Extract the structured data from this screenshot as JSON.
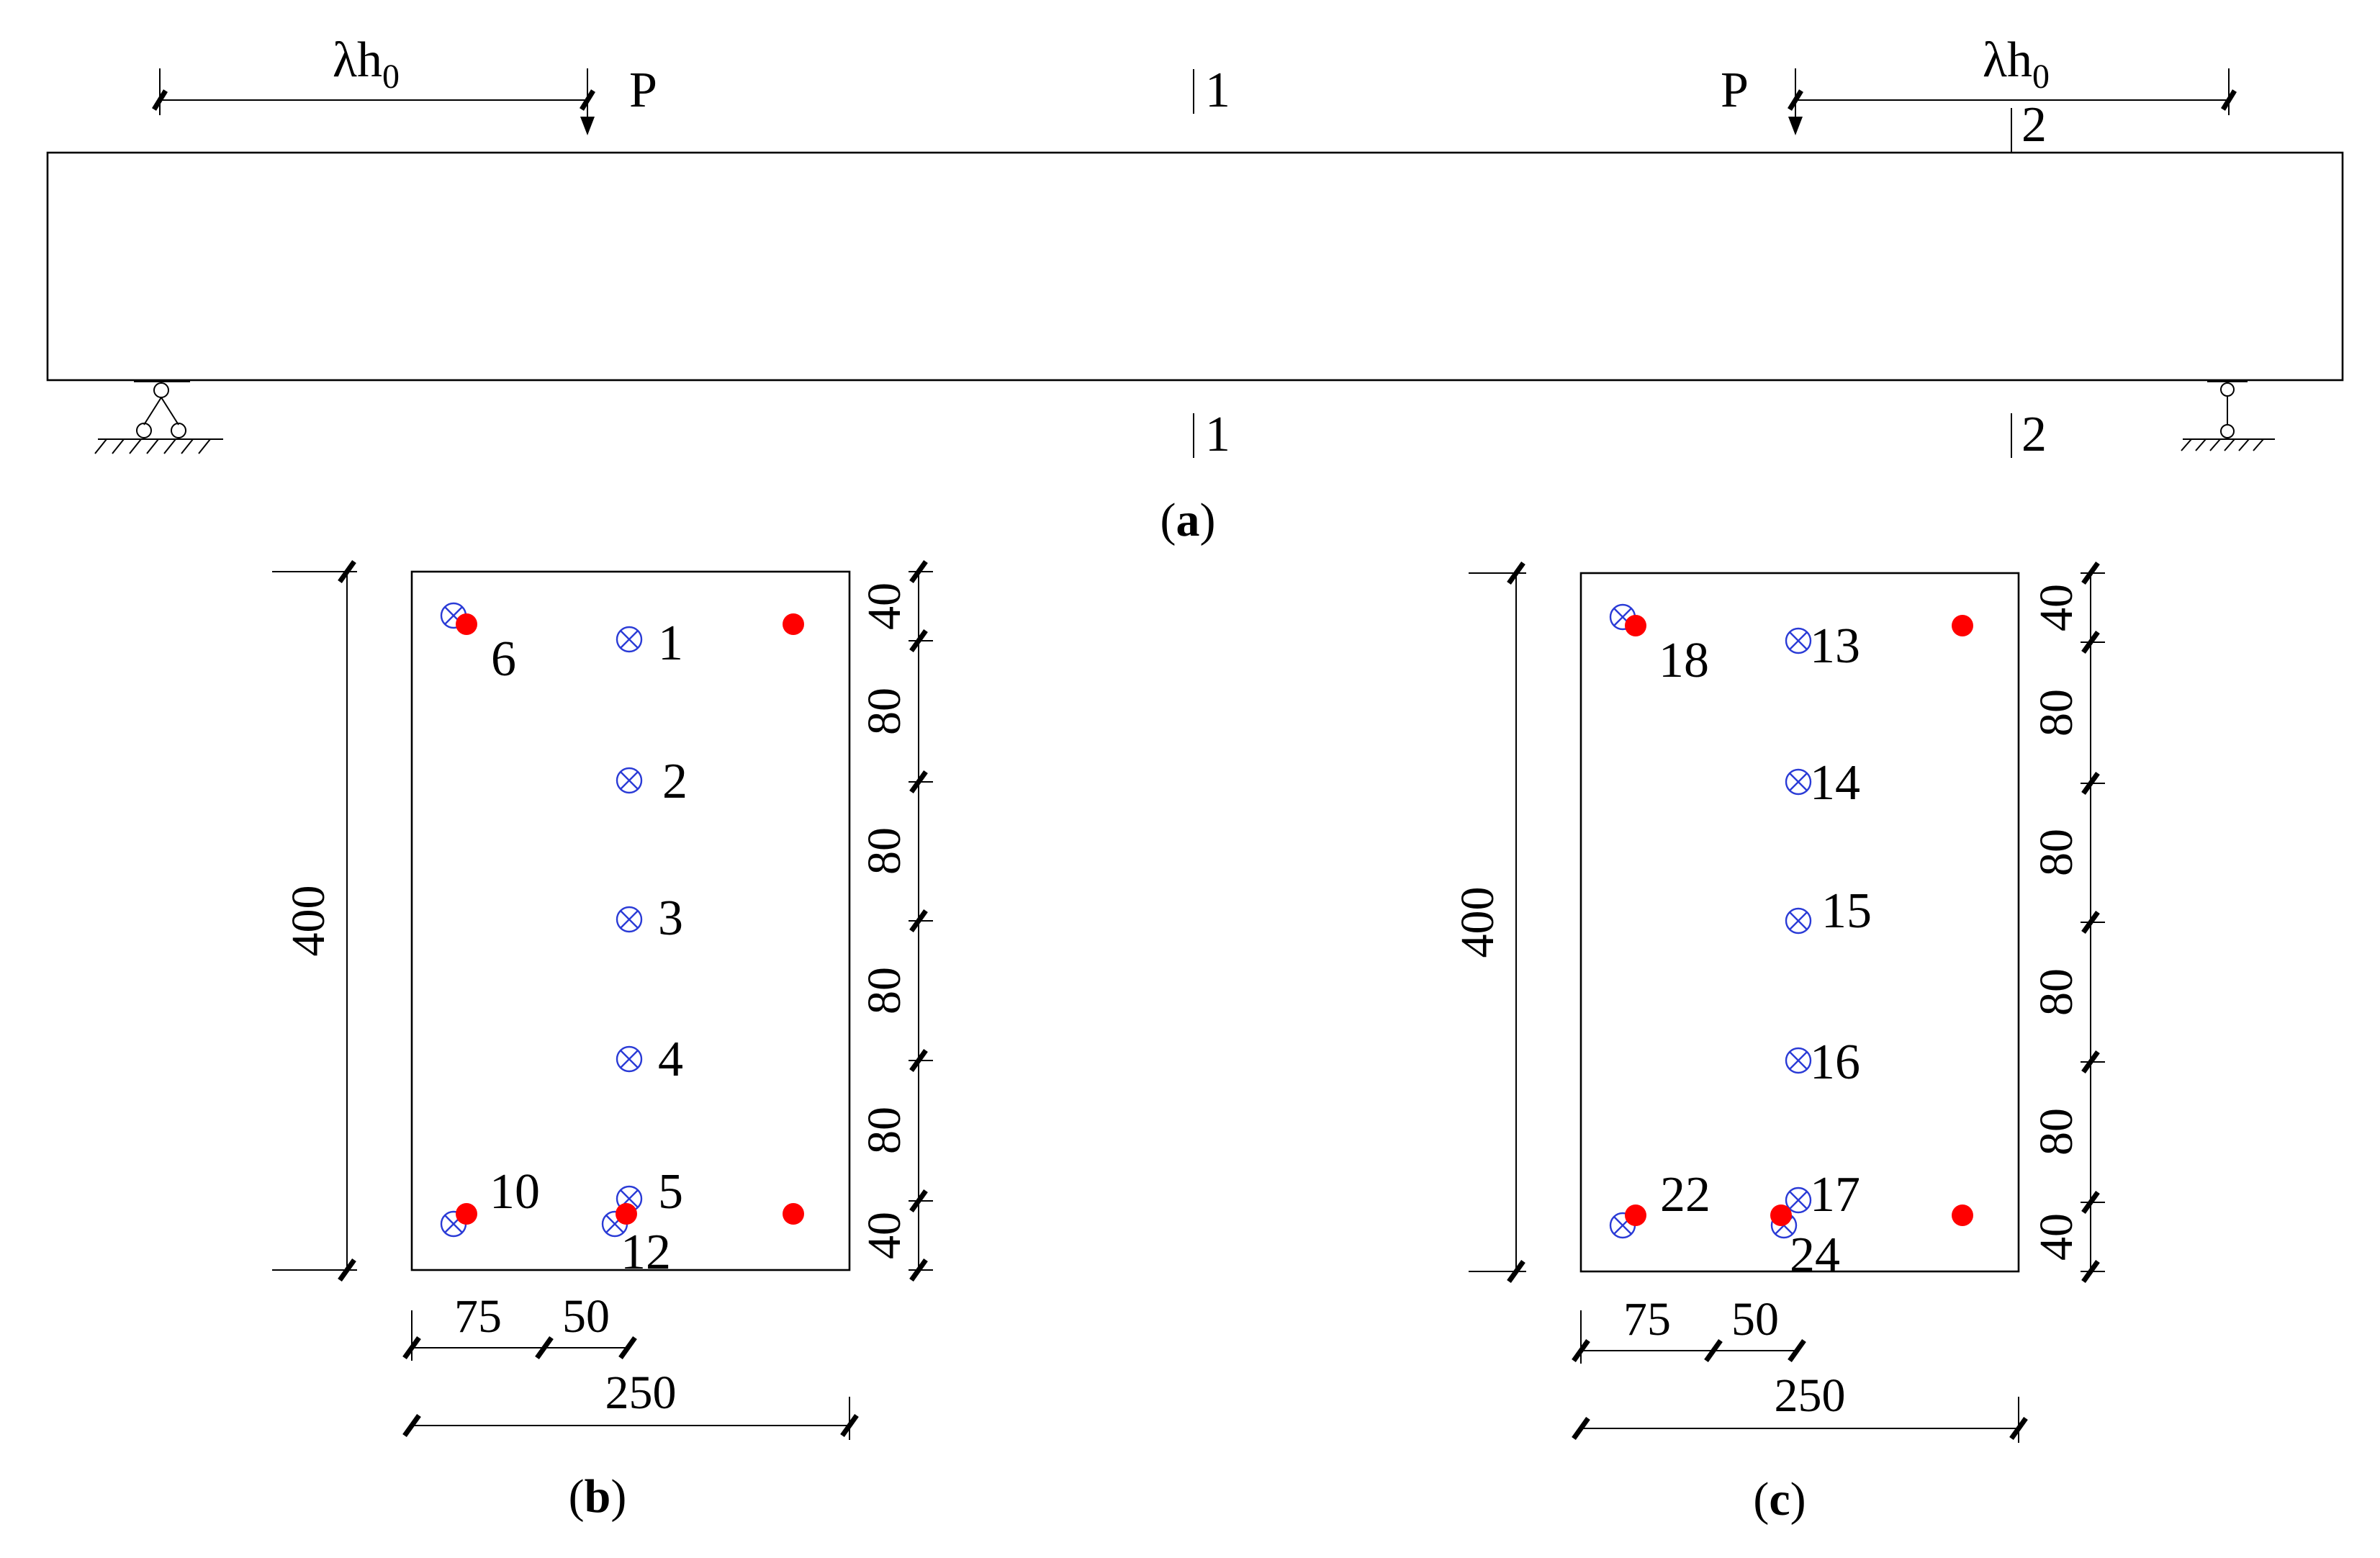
{
  "beam_view": {
    "lambda_text": "λh",
    "lambda_sub": "0",
    "load_label": "P",
    "section_1_label": "1",
    "section_2_label": "2",
    "caption_letter": "a"
  },
  "section_b": {
    "height_dim": "400",
    "width_dim": "250",
    "bottom_dims": [
      "75",
      "50"
    ],
    "right_dims": [
      "40",
      "80",
      "80",
      "80",
      "80",
      "40"
    ],
    "gauge_labels": [
      "1",
      "2",
      "3",
      "4",
      "5",
      "6",
      "10",
      "12"
    ],
    "caption_letter": "b"
  },
  "section_c": {
    "height_dim": "400",
    "width_dim": "250",
    "bottom_dims": [
      "75",
      "50"
    ],
    "right_dims": [
      "40",
      "80",
      "80",
      "80",
      "80",
      "40"
    ],
    "gauge_labels": [
      "13",
      "14",
      "15",
      "16",
      "17",
      "18",
      "22",
      "24"
    ],
    "caption_letter": "c"
  },
  "colors": {
    "concrete_gauge": "#2a3bd6",
    "rebar_gauge": "#ff0000"
  }
}
